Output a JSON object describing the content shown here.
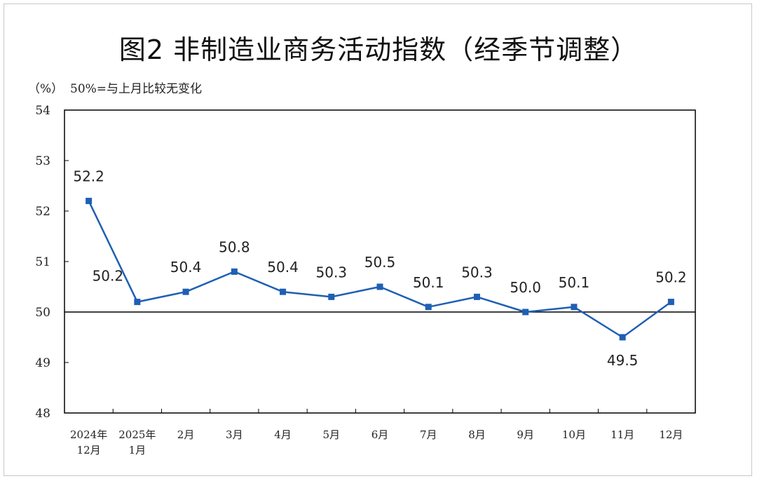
{
  "chart_data": {
    "type": "line",
    "title": "图2  非制造业商务活动指数（经季节调整）",
    "unit_label": "（%）",
    "note": "50%=与上月比较无变化",
    "categories": [
      [
        "2024年",
        "12月"
      ],
      [
        "2025年",
        "1月"
      ],
      [
        "2月"
      ],
      [
        "3月"
      ],
      [
        "4月"
      ],
      [
        "5月"
      ],
      [
        "6月"
      ],
      [
        "7月"
      ],
      [
        "8月"
      ],
      [
        "9月"
      ],
      [
        "10月"
      ],
      [
        "11月"
      ],
      [
        "12月"
      ]
    ],
    "values": [
      52.2,
      50.2,
      50.4,
      50.8,
      50.4,
      50.3,
      50.5,
      50.1,
      50.3,
      50.0,
      50.1,
      49.5,
      50.2
    ],
    "data_labels": [
      "52.2",
      "50.2",
      "50.4",
      "50.8",
      "50.4",
      "50.3",
      "50.5",
      "50.1",
      "50.3",
      "50.0",
      "50.1",
      "49.5",
      "50.2"
    ],
    "label_side": [
      "above",
      "above-left",
      "above",
      "above",
      "above",
      "above",
      "above",
      "above",
      "above",
      "above",
      "above",
      "below",
      "above"
    ],
    "yticks": [
      48,
      49,
      50,
      51,
      52,
      53,
      54
    ],
    "ylim": [
      48,
      54
    ],
    "reference_line": 50,
    "series_color": "#1f5fb4",
    "axis_color": "#000000"
  }
}
